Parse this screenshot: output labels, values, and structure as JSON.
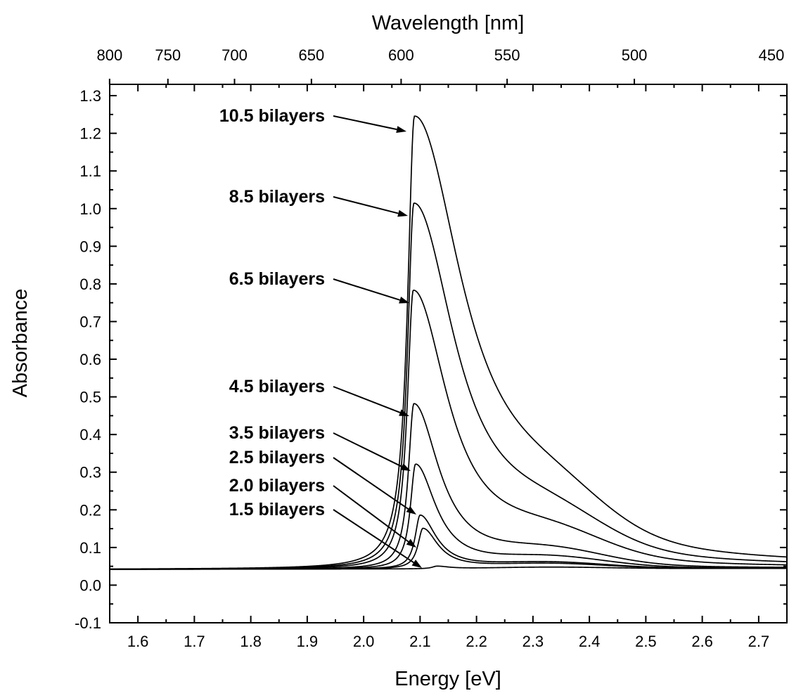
{
  "chart_data": {
    "type": "line",
    "title": "",
    "xlabel": "Energy [eV]",
    "ylabel": "Absorbance",
    "top_xlabel": "Wavelength [nm]",
    "xlim": [
      1.55,
      2.75
    ],
    "ylim": [
      -0.1,
      1.33
    ],
    "grid": false,
    "legend": "none",
    "x_ticks": [
      "1.6",
      "1.7",
      "1.8",
      "1.9",
      "2.0",
      "2.1",
      "2.2",
      "2.3",
      "2.4",
      "2.5",
      "2.6",
      "2.7"
    ],
    "y_ticks": [
      "-0.1",
      "0.0",
      "0.1",
      "0.2",
      "0.3",
      "0.4",
      "0.5",
      "0.6",
      "0.7",
      "0.8",
      "0.9",
      "1.0",
      "1.1",
      "1.2",
      "1.3"
    ],
    "top_ticks": [
      {
        "label": "800",
        "nm": 800
      },
      {
        "label": "750",
        "nm": 750
      },
      {
        "label": "700",
        "nm": 700
      },
      {
        "label": "650",
        "nm": 650
      },
      {
        "label": "600",
        "nm": 600
      },
      {
        "label": "550",
        "nm": 550
      },
      {
        "label": "500",
        "nm": 500
      },
      {
        "label": "450",
        "nm": 450
      }
    ],
    "series": [
      {
        "name": "10.5 bilayers",
        "peak_x": 2.09,
        "peak_y": 1.24
      },
      {
        "name": "8.5 bilayers",
        "peak_x": 2.089,
        "peak_y": 1.01
      },
      {
        "name": "6.5 bilayers",
        "peak_x": 2.088,
        "peak_y": 0.78
      },
      {
        "name": "4.5 bilayers",
        "peak_x": 2.089,
        "peak_y": 0.48
      },
      {
        "name": "3.5 bilayers",
        "peak_x": 2.092,
        "peak_y": 0.32
      },
      {
        "name": "2.5 bilayers",
        "peak_x": 2.1,
        "peak_y": 0.185
      },
      {
        "name": "2.0 bilayers",
        "peak_x": 2.105,
        "peak_y": 0.15
      },
      {
        "name": "1.5 bilayers",
        "peak_x": 2.13,
        "peak_y": 0.05
      }
    ]
  }
}
